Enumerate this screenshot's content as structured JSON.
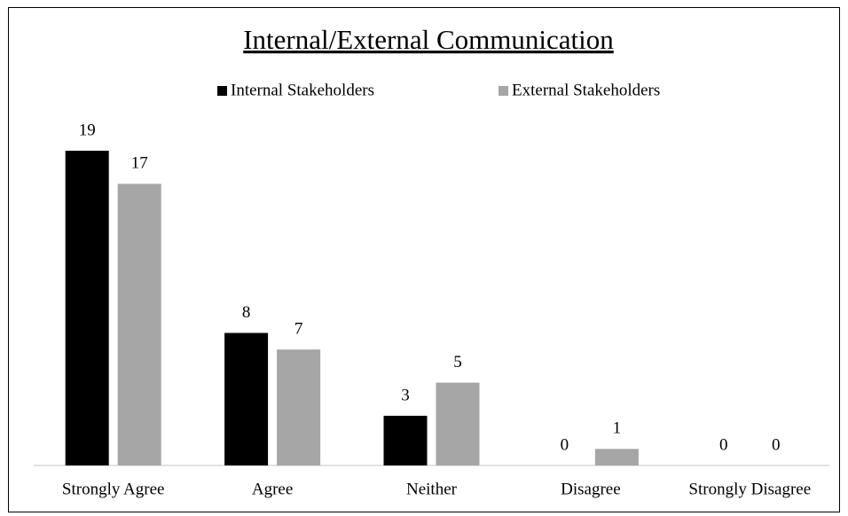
{
  "chart_data": {
    "type": "bar",
    "title": "Internal/External Communication",
    "categories": [
      "Strongly Agree",
      "Agree",
      "Neither",
      "Disagree",
      "Strongly Disagree"
    ],
    "series": [
      {
        "name": "Internal Stakeholders",
        "color": "#000000",
        "values": [
          19,
          8,
          3,
          0,
          0
        ]
      },
      {
        "name": "External Stakeholders",
        "color": "#a6a6a6",
        "values": [
          17,
          7,
          5,
          1,
          0
        ]
      }
    ],
    "legend": "top"
  }
}
